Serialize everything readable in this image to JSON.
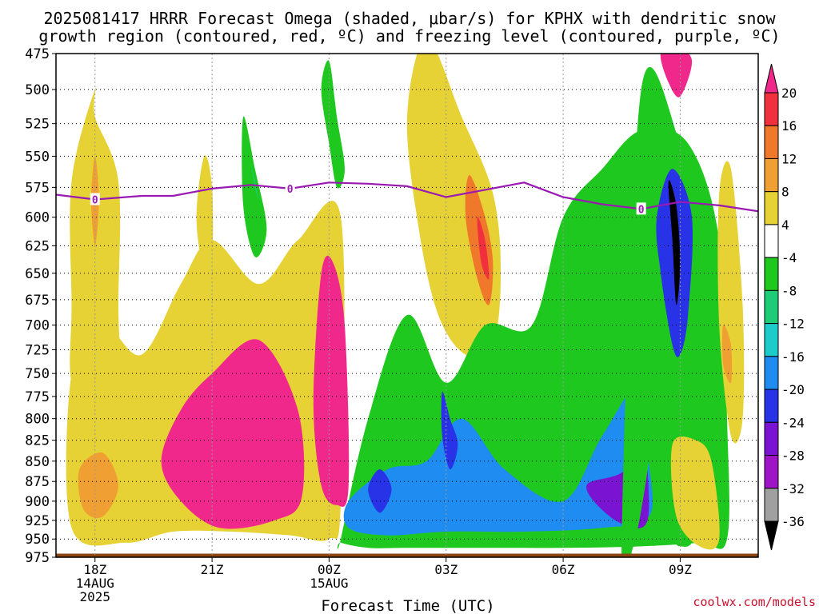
{
  "chart_data": {
    "type": "heatmap",
    "title_lines": [
      "2025081417 HRRR Forecast Omega (shaded, μbar/s) for KPHX with dendritic snow",
      "growth region (contoured, red, ºC) and freezing level (contoured, purple, ºC)"
    ],
    "xlabel": "Forecast Time (UTC)",
    "x_ticks": [
      {
        "label": "18Z",
        "sub": [
          "14AUG",
          "2025"
        ],
        "hours": 0
      },
      {
        "label": "21Z",
        "sub": [],
        "hours": 3
      },
      {
        "label": "00Z",
        "sub": [
          "15AUG"
        ],
        "hours": 6
      },
      {
        "label": "03Z",
        "sub": [],
        "hours": 9
      },
      {
        "label": "06Z",
        "sub": [],
        "hours": 12
      },
      {
        "label": "09Z",
        "sub": [],
        "hours": 15
      }
    ],
    "xlim_hours": [
      -1,
      17
    ],
    "y_ticks": [
      475,
      500,
      525,
      550,
      575,
      600,
      625,
      650,
      675,
      700,
      725,
      750,
      775,
      800,
      825,
      850,
      875,
      900,
      925,
      950,
      975
    ],
    "ylim_hpa": [
      475,
      975
    ],
    "y_scale": "log-pressure",
    "grid": "dotted",
    "colorbar": {
      "tick_labels": [
        "20",
        "16",
        "12",
        "8",
        "4",
        "-4",
        "-8",
        "-12",
        "-16",
        "-20",
        "-24",
        "-28",
        "-32",
        "-36"
      ],
      "bins": [
        {
          "range": ">20",
          "color": "#f0288c"
        },
        {
          "range": "16-20",
          "color": "#f0303c"
        },
        {
          "range": "12-16",
          "color": "#f0782a"
        },
        {
          "range": "8-12",
          "color": "#f0a032"
        },
        {
          "range": "4-8",
          "color": "#e6d234"
        },
        {
          "range": "-4-4",
          "color": "#ffffff"
        },
        {
          "range": "-8--4",
          "color": "#1ec81e"
        },
        {
          "range": "-12--8",
          "color": "#1ecc78"
        },
        {
          "range": "-16--12",
          "color": "#1ecbcb"
        },
        {
          "range": "-20--16",
          "color": "#1e8cf0"
        },
        {
          "range": "-24--20",
          "color": "#2832e6"
        },
        {
          "range": "-28--24",
          "color": "#7a14d2"
        },
        {
          "range": "-32--28",
          "color": "#a014c8"
        },
        {
          "range": "-36--32",
          "color": "#a0a0a0"
        },
        {
          "range": "<-36",
          "color": "#000000"
        }
      ]
    },
    "freezing_level": {
      "color": "#9a19b2",
      "label": "0",
      "points": [
        {
          "hours": -1.0,
          "p": 581
        },
        {
          "hours": 0.0,
          "p": 585
        },
        {
          "hours": 1.2,
          "p": 582
        },
        {
          "hours": 2.0,
          "p": 582
        },
        {
          "hours": 3.0,
          "p": 576
        },
        {
          "hours": 4.0,
          "p": 573
        },
        {
          "hours": 5.0,
          "p": 576
        },
        {
          "hours": 6.0,
          "p": 571
        },
        {
          "hours": 7.0,
          "p": 572
        },
        {
          "hours": 8.0,
          "p": 574
        },
        {
          "hours": 9.0,
          "p": 583
        },
        {
          "hours": 10.0,
          "p": 577
        },
        {
          "hours": 11.0,
          "p": 571
        },
        {
          "hours": 12.0,
          "p": 583
        },
        {
          "hours": 13.0,
          "p": 589
        },
        {
          "hours": 14.0,
          "p": 593
        },
        {
          "hours": 15.0,
          "p": 587
        },
        {
          "hours": 16.0,
          "p": 590
        },
        {
          "hours": 17.0,
          "p": 595
        }
      ],
      "label_points": [
        {
          "hours": 0.0,
          "p": 585
        },
        {
          "hours": 5.0,
          "p": 576
        },
        {
          "hours": 14.0,
          "p": 593
        }
      ]
    },
    "features": [
      {
        "name": "yellow-column-18z",
        "level": 4,
        "hours": [
          0.0,
          0.0,
          0.6,
          0.6,
          0.6,
          0.0,
          -0.6,
          -0.6,
          -0.6
        ],
        "p": [
          500,
          520,
          570,
          680,
          760,
          800,
          760,
          680,
          570
        ]
      },
      {
        "name": "yellow-low-band",
        "level": 4,
        "hours": [
          -0.6,
          0.2,
          1.2,
          2.2,
          3.0,
          4.2,
          5.2,
          6.3,
          6.3,
          6.0,
          5.0,
          3.5,
          2.0,
          0.8,
          -0.6
        ],
        "p": [
          750,
          700,
          730,
          660,
          620,
          660,
          620,
          600,
          900,
          950,
          945,
          940,
          940,
          955,
          935
        ]
      },
      {
        "name": "yellow-upper-left",
        "level": 4,
        "hours": [
          2.8,
          3.0,
          3.0,
          2.8,
          2.6
        ],
        "p": [
          550,
          575,
          640,
          650,
          600
        ]
      },
      {
        "name": "orange-blob-18z",
        "level": 8,
        "hours": [
          0.0,
          0.1,
          0.0,
          -0.1
        ],
        "p": [
          550,
          585,
          625,
          585
        ]
      },
      {
        "name": "orange-blob-18z-low",
        "level": 8,
        "hours": [
          -0.4,
          0.2,
          0.6,
          0.2,
          -0.3
        ],
        "p": [
          860,
          840,
          880,
          920,
          910
        ]
      },
      {
        "name": "green-blob-upper",
        "level": -8,
        "hours": [
          3.8,
          4.1,
          4.4,
          4.1,
          3.8
        ],
        "p": [
          520,
          560,
          610,
          635,
          590
        ]
      },
      {
        "name": "cyan-core-upper",
        "level": -12,
        "hours": [
          4.0,
          4.1,
          4.2,
          4.1
        ],
        "p": [
          555,
          570,
          585,
          575
        ]
      },
      {
        "name": "green-upper-middle",
        "level": -8,
        "hours": [
          6.0,
          6.2,
          6.4,
          6.2,
          6.0,
          5.8
        ],
        "p": [
          480,
          520,
          560,
          575,
          540,
          500
        ]
      },
      {
        "name": "cyan-upper-middle",
        "level": -12,
        "hours": [
          6.0,
          6.1,
          6.2,
          6.1
        ],
        "p": [
          515,
          530,
          545,
          530
        ]
      },
      {
        "name": "pink-left",
        "level": 20,
        "hours": [
          3.0,
          4.2,
          5.2,
          5.3,
          4.6,
          3.2,
          2.2,
          1.7,
          2.2
        ],
        "p": [
          750,
          715,
          790,
          895,
          925,
          935,
          900,
          850,
          790
        ]
      },
      {
        "name": "pink-center",
        "level": 20,
        "hours": [
          5.8,
          6.1,
          6.4,
          6.5,
          6.2,
          5.8,
          5.6
        ],
        "p": [
          650,
          640,
          700,
          880,
          905,
          880,
          780
        ]
      },
      {
        "name": "yellow-column-03z",
        "level": 4,
        "hours": [
          8.5,
          9.4,
          10.2,
          10.4,
          10.2,
          9.5,
          8.8,
          8.3,
          8.0
        ],
        "p": [
          465,
          520,
          580,
          650,
          720,
          730,
          690,
          610,
          520
        ]
      },
      {
        "name": "orange-column-03z",
        "level": 12,
        "hours": [
          9.6,
          10.0,
          10.2,
          10.1,
          9.8,
          9.5
        ],
        "p": [
          565,
          600,
          640,
          680,
          655,
          600
        ]
      },
      {
        "name": "red-core-03z",
        "level": 16,
        "hours": [
          9.8,
          10.0,
          10.1,
          9.9
        ],
        "p": [
          600,
          620,
          655,
          640
        ]
      },
      {
        "name": "green-right-mass",
        "level": -8,
        "hours": [
          6.3,
          7.0,
          8.0,
          9.0,
          10.0,
          11.2,
          12.0,
          13.0,
          14.0,
          15.2,
          16.0,
          16.2,
          16.2,
          15.5,
          14.0,
          12.0,
          10.0,
          8.0,
          7.0,
          6.3
        ],
        "p": [
          950,
          800,
          690,
          760,
          700,
          700,
          600,
          560,
          530,
          540,
          620,
          800,
          950,
          955,
          960,
          962,
          962,
          962,
          962,
          955
        ]
      },
      {
        "name": "blue-lower",
        "level": -16,
        "hours": [
          6.5,
          7.5,
          8.5,
          9.4,
          10.5,
          12.0,
          13.0,
          14.0,
          14.2,
          14.2,
          13.0,
          11.0,
          9.0,
          7.5,
          6.5
        ],
        "p": [
          900,
          860,
          850,
          800,
          860,
          900,
          820,
          760,
          850,
          920,
          935,
          940,
          940,
          945,
          935
        ]
      },
      {
        "name": "navy-dot-left",
        "level": -24,
        "hours": [
          7.3,
          7.6,
          7.3,
          7.0
        ],
        "p": [
          860,
          885,
          915,
          885
        ]
      },
      {
        "name": "navy-core-03z",
        "level": -24,
        "hours": [
          8.9,
          9.1,
          9.3,
          9.1,
          8.9
        ],
        "p": [
          770,
          800,
          830,
          860,
          820
        ]
      },
      {
        "name": "purple-lower-right",
        "level": -28,
        "hours": [
          12.6,
          13.6,
          14.0,
          14.2,
          14.0,
          13.2
        ],
        "p": [
          880,
          860,
          800,
          900,
          935,
          920
        ]
      },
      {
        "name": "green-tower-09z",
        "level": -8,
        "hours": [
          13.5,
          14.0,
          15.0,
          15.5,
          15.5,
          15.0,
          14.6,
          14.4,
          14.2,
          13.8
        ],
        "p": [
          950,
          500,
          540,
          600,
          900,
          960,
          905,
          760,
          850,
          960
        ]
      },
      {
        "name": "blue-tower-09z",
        "level": -20,
        "hours": [
          14.4,
          14.8,
          15.3,
          15.2,
          15.0,
          14.8,
          14.5
        ],
        "p": [
          600,
          560,
          600,
          690,
          730,
          720,
          650
        ]
      },
      {
        "name": "black-core-09z",
        "level": -40,
        "hours": [
          14.7,
          14.9,
          15.0,
          14.9,
          14.8
        ],
        "p": [
          570,
          590,
          640,
          680,
          620
        ]
      },
      {
        "name": "magenta-top-09z",
        "level": 20,
        "hours": [
          14.5,
          14.9,
          15.3,
          15.0,
          14.7
        ],
        "p": [
          475,
          470,
          480,
          505,
          495
        ]
      },
      {
        "name": "yellow-right-low",
        "level": 4,
        "hours": [
          14.8,
          15.4,
          15.8,
          16.0,
          15.5,
          14.9
        ],
        "p": [
          830,
          825,
          850,
          950,
          960,
          920
        ]
      },
      {
        "name": "yellow-far-right",
        "level": 4,
        "hours": [
          16.0,
          16.3,
          16.6,
          16.6,
          16.3,
          16.0
        ],
        "p": [
          580,
          560,
          680,
          800,
          820,
          700
        ]
      },
      {
        "name": "orange-far-right",
        "level": 8,
        "hours": [
          16.1,
          16.3,
          16.3,
          16.1
        ],
        "p": [
          700,
          720,
          760,
          740
        ]
      }
    ],
    "ground_band": {
      "color": "#8b4513",
      "p_top": 970
    }
  },
  "credit": "coolwx.com/models"
}
